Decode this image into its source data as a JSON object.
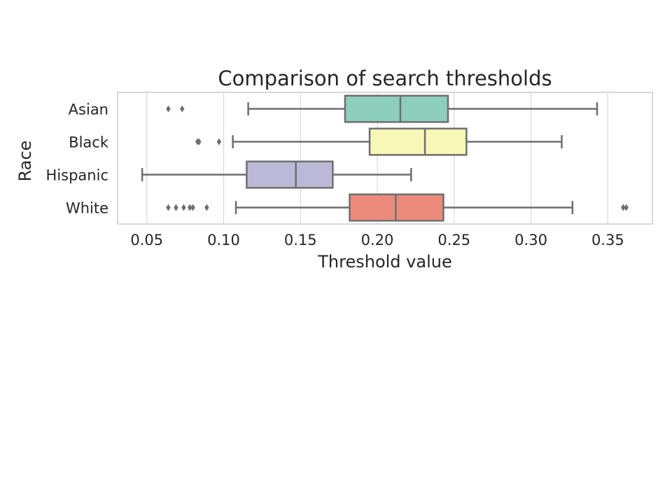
{
  "chart_data": {
    "type": "boxplot",
    "orientation": "horizontal",
    "title": "Comparison of search thresholds",
    "xlabel": "Threshold value",
    "ylabel": "Race",
    "xlim": [
      0.031,
      0.379
    ],
    "xticks": [
      0.05,
      0.1,
      0.15,
      0.2,
      0.25,
      0.3,
      0.35
    ],
    "xtick_labels": [
      "0.05",
      "0.10",
      "0.15",
      "0.20",
      "0.25",
      "0.30",
      "0.35"
    ],
    "grid": true,
    "categories": [
      "Asian",
      "Black",
      "Hispanic",
      "White"
    ],
    "boxes": [
      {
        "category": "Asian",
        "whisker_low": 0.116,
        "q1": 0.179,
        "median": 0.215,
        "q3": 0.246,
        "whisker_high": 0.343,
        "fliers": [
          0.064,
          0.073
        ],
        "color": "#8dcebd"
      },
      {
        "category": "Black",
        "whisker_low": 0.106,
        "q1": 0.195,
        "median": 0.231,
        "q3": 0.258,
        "whisker_high": 0.32,
        "fliers": [
          0.083,
          0.084,
          0.097
        ],
        "color": "#f7f7b7"
      },
      {
        "category": "Hispanic",
        "whisker_low": 0.047,
        "q1": 0.115,
        "median": 0.147,
        "q3": 0.171,
        "whisker_high": 0.222,
        "fliers": [],
        "color": "#bcb8d8"
      },
      {
        "category": "White",
        "whisker_low": 0.108,
        "q1": 0.182,
        "median": 0.212,
        "q3": 0.243,
        "whisker_high": 0.327,
        "fliers": [
          0.064,
          0.069,
          0.074,
          0.078,
          0.08,
          0.089,
          0.36,
          0.362
        ],
        "color": "#ec8b7c"
      }
    ]
  }
}
